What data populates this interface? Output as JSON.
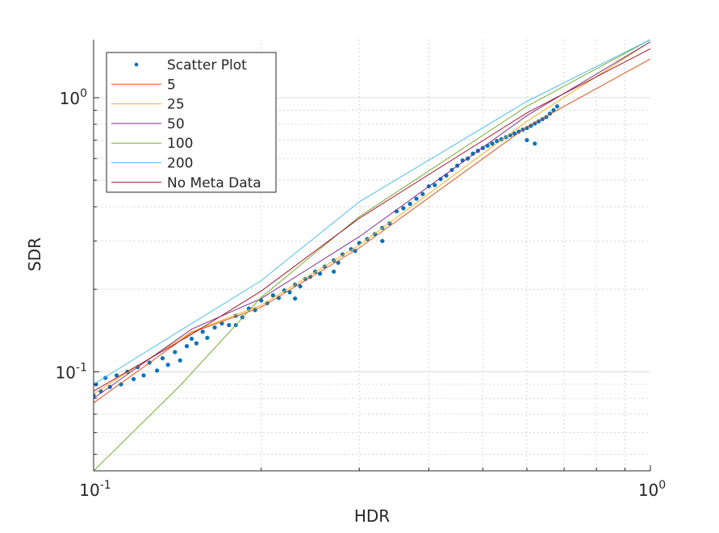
{
  "chart_data": {
    "type": "scatter",
    "title": "",
    "xlabel": "HDR",
    "ylabel": "SDR",
    "xscale": "log",
    "yscale": "log",
    "xlim": [
      0.1,
      1.0
    ],
    "ylim": [
      0.0435,
      1.63
    ],
    "grid": "on (major solid, minor dotted)",
    "legend_placement": "top-left",
    "x_ticks": [
      {
        "base": "10",
        "exp": "-1"
      },
      {
        "base": "10",
        "exp": "0"
      }
    ],
    "y_ticks": [
      {
        "value": 0.1,
        "base": "10",
        "exp": "-1"
      },
      {
        "value": 1,
        "base": "10",
        "exp": "0"
      }
    ],
    "series": [
      {
        "name": "Scatter Plot",
        "kind": "markers",
        "color": "#0072BD",
        "x": [
          0.1,
          0.101,
          0.103,
          0.105,
          0.107,
          0.11,
          0.112,
          0.115,
          0.118,
          0.12,
          0.123,
          0.126,
          0.13,
          0.133,
          0.136,
          0.14,
          0.143,
          0.147,
          0.15,
          0.153,
          0.157,
          0.16,
          0.165,
          0.17,
          0.175,
          0.18,
          0.185,
          0.19,
          0.195,
          0.2,
          0.205,
          0.21,
          0.215,
          0.22,
          0.225,
          0.23,
          0.235,
          0.24,
          0.245,
          0.25,
          0.255,
          0.26,
          0.27,
          0.275,
          0.28,
          0.29,
          0.295,
          0.3,
          0.31,
          0.32,
          0.33,
          0.34,
          0.35,
          0.36,
          0.37,
          0.38,
          0.39,
          0.4,
          0.41,
          0.42,
          0.43,
          0.44,
          0.45,
          0.46,
          0.47,
          0.48,
          0.49,
          0.5,
          0.51,
          0.52,
          0.53,
          0.54,
          0.55,
          0.56,
          0.57,
          0.58,
          0.59,
          0.6,
          0.61,
          0.62,
          0.63,
          0.64,
          0.65,
          0.66,
          0.67,
          0.68,
          0.6,
          0.62,
          0.18,
          0.23,
          0.27,
          0.33
        ],
        "y": [
          0.082,
          0.09,
          0.085,
          0.095,
          0.088,
          0.097,
          0.09,
          0.1,
          0.094,
          0.104,
          0.097,
          0.108,
          0.101,
          0.112,
          0.106,
          0.118,
          0.11,
          0.124,
          0.132,
          0.127,
          0.14,
          0.133,
          0.145,
          0.15,
          0.148,
          0.16,
          0.158,
          0.17,
          0.168,
          0.182,
          0.178,
          0.19,
          0.186,
          0.198,
          0.195,
          0.208,
          0.205,
          0.218,
          0.222,
          0.232,
          0.228,
          0.242,
          0.255,
          0.25,
          0.268,
          0.28,
          0.276,
          0.295,
          0.305,
          0.318,
          0.335,
          0.348,
          0.385,
          0.395,
          0.41,
          0.428,
          0.445,
          0.475,
          0.48,
          0.505,
          0.52,
          0.545,
          0.565,
          0.59,
          0.6,
          0.625,
          0.64,
          0.655,
          0.668,
          0.68,
          0.695,
          0.705,
          0.718,
          0.73,
          0.74,
          0.752,
          0.765,
          0.775,
          0.79,
          0.805,
          0.82,
          0.835,
          0.85,
          0.875,
          0.9,
          0.93,
          0.7,
          0.68,
          0.148,
          0.185,
          0.232,
          0.3
        ]
      },
      {
        "name": "5",
        "kind": "line",
        "color": "#D95319",
        "x": [
          0.1,
          0.15,
          0.2,
          0.3,
          0.6,
          1.0
        ],
        "y": [
          0.077,
          0.139,
          0.172,
          0.283,
          0.783,
          1.386
        ]
      },
      {
        "name": "25",
        "kind": "line",
        "color": "#EDB120",
        "x": [
          0.1,
          0.15,
          0.2,
          0.3,
          0.6,
          1.0
        ],
        "y": [
          0.083,
          0.14,
          0.175,
          0.29,
          0.82,
          1.6
        ]
      },
      {
        "name": "50",
        "kind": "line",
        "color": "#7E2F8E",
        "x": [
          0.1,
          0.15,
          0.2,
          0.3,
          0.6,
          1.0
        ],
        "y": [
          0.08,
          0.143,
          0.185,
          0.311,
          0.86,
          1.6
        ]
      },
      {
        "name": "100",
        "kind": "line",
        "color": "#77AC30",
        "x": [
          0.1,
          0.143,
          0.2,
          0.3,
          0.6,
          1.0
        ],
        "y": [
          0.0435,
          0.089,
          0.187,
          0.368,
          0.93,
          1.63
        ]
      },
      {
        "name": "200",
        "kind": "line",
        "color": "#4DBEEE",
        "x": [
          0.1,
          0.15,
          0.2,
          0.3,
          0.6,
          1.0
        ],
        "y": [
          0.09,
          0.15,
          0.215,
          0.417,
          0.97,
          1.63
        ]
      },
      {
        "name": "No Meta Data",
        "kind": "line",
        "color": "#A2142F",
        "x": [
          0.1,
          0.15,
          0.2,
          0.3,
          0.6,
          1.0
        ],
        "y": [
          0.085,
          0.137,
          0.197,
          0.363,
          0.88,
          1.51
        ]
      }
    ]
  }
}
